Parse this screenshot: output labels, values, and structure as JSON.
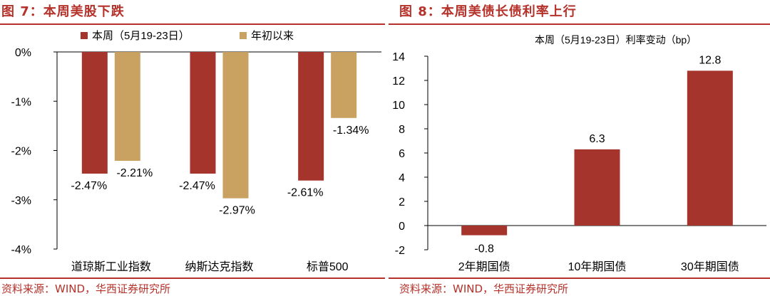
{
  "left": {
    "title": "图 7：本周美股下跌",
    "source": "资料来源：WIND，华西证券研究所",
    "chart_data": {
      "type": "bar",
      "categories": [
        "道琼斯工业指数",
        "纳斯达克指数",
        "标普500"
      ],
      "series": [
        {
          "name": "本周（5月19-23日）",
          "values": [
            -2.47,
            -2.47,
            -2.61
          ],
          "color": "#a5342c",
          "labels": [
            "-2.47%",
            "-2.47%",
            "-2.61%"
          ]
        },
        {
          "name": "年初以来",
          "values": [
            -2.21,
            -2.97,
            -1.34
          ],
          "color": "#c9a261",
          "labels": [
            "-2.21%",
            "-2.97%",
            "-1.34%"
          ]
        }
      ],
      "ylim": [
        -4,
        0
      ],
      "yticks": [
        0,
        -1,
        -2,
        -3,
        -4
      ],
      "ytick_labels": [
        "0%",
        "-1%",
        "-2%",
        "-3%",
        "-4%"
      ],
      "legend_position": "top",
      "grid": false
    }
  },
  "right": {
    "title": "图 8：本周美债长债利率上行",
    "source": "资料来源：WIND，华西证券研究所",
    "chart_data": {
      "type": "bar",
      "categories": [
        "2年期国债",
        "10年期国债",
        "30年期国债"
      ],
      "series": [
        {
          "name": "本周（5月19-23日）利率变动（bp）",
          "values": [
            -0.8,
            6.3,
            12.8
          ],
          "color": "#a5342c",
          "labels": [
            "-0.8",
            "6.3",
            "12.8"
          ]
        }
      ],
      "ylim": [
        -2,
        14
      ],
      "yticks": [
        14,
        12,
        10,
        8,
        6,
        4,
        2,
        0,
        -2
      ],
      "ytick_labels": [
        "14",
        "12",
        "10",
        "8",
        "6",
        "4",
        "2",
        "0",
        "-2"
      ],
      "legend_position": "top",
      "grid": false
    }
  }
}
